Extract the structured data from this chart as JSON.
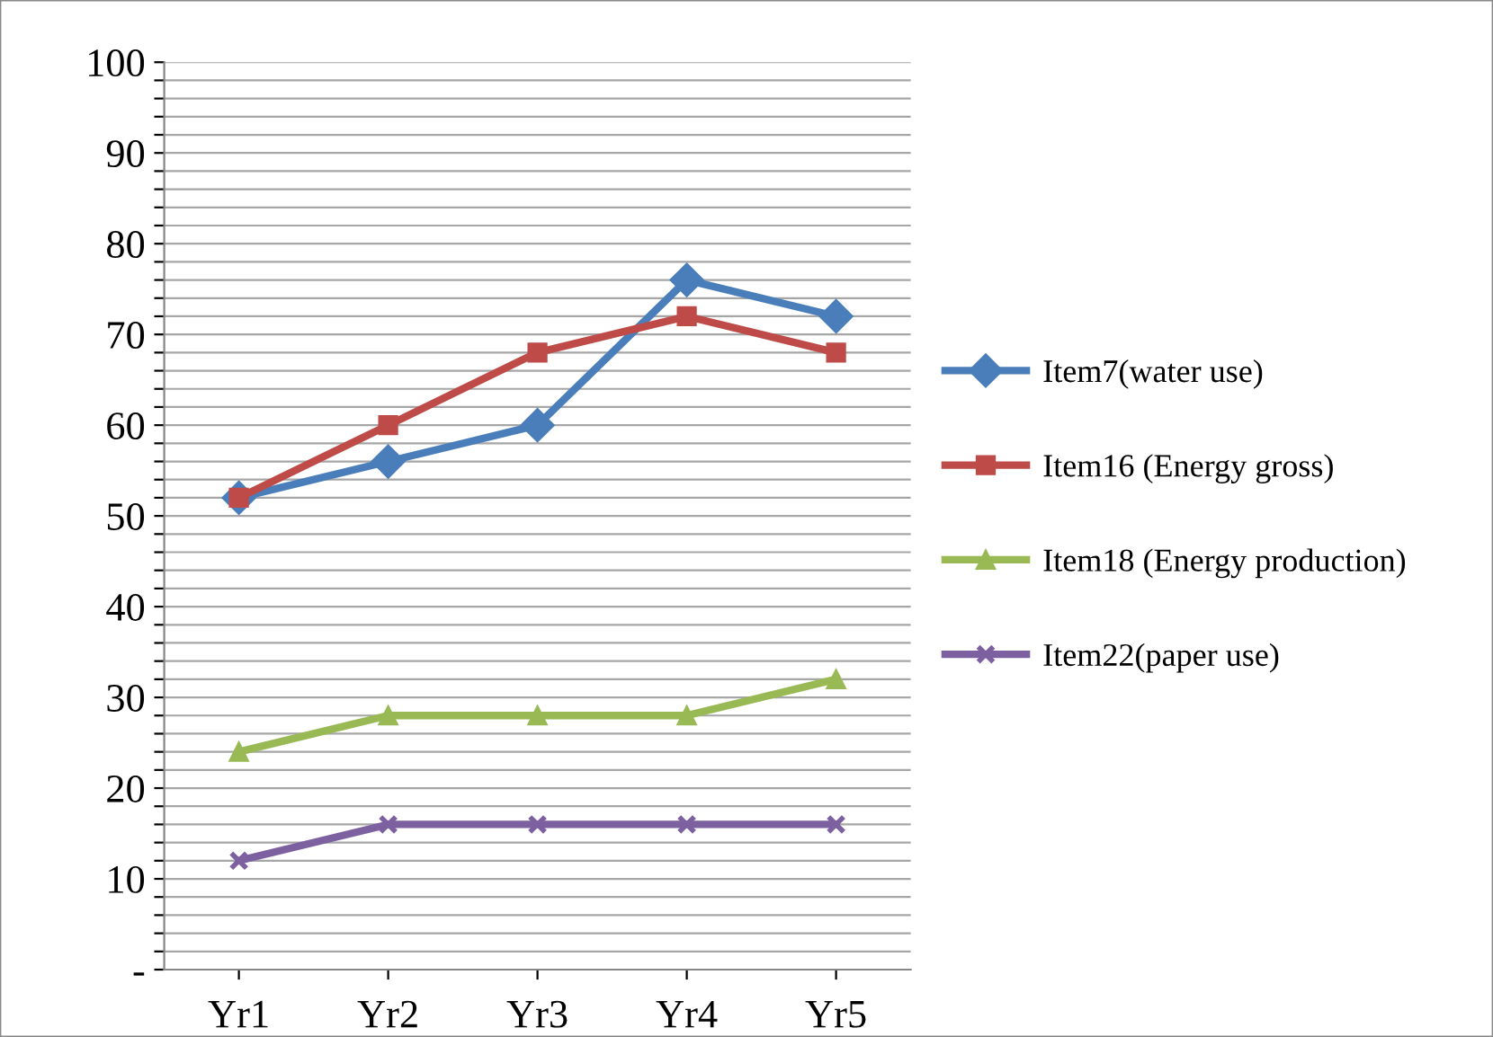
{
  "chart_data": {
    "type": "line",
    "categories": [
      "Yr1",
      "Yr2",
      "Yr3",
      "Yr4",
      "Yr5"
    ],
    "series": [
      {
        "name": "Item7(water use)",
        "color": "#4a7ebb",
        "marker": "diamond",
        "values": [
          52,
          56,
          60,
          76,
          72
        ]
      },
      {
        "name": "Item16 (Energy gross)",
        "color": "#be4b48",
        "marker": "square",
        "values": [
          52,
          60,
          68,
          72,
          68
        ]
      },
      {
        "name": "Item18 (Energy production)",
        "color": "#98b954",
        "marker": "triangle",
        "values": [
          24,
          28,
          28,
          28,
          32
        ]
      },
      {
        "name": "Item22(paper use)",
        "color": "#7d60a0",
        "marker": "cross",
        "values": [
          12,
          16,
          16,
          16,
          16
        ]
      }
    ],
    "ylim": [
      0,
      100
    ],
    "yticks": [
      {
        "value": 0,
        "label": "-"
      },
      {
        "value": 2,
        "label": null
      },
      {
        "value": 4,
        "label": null
      },
      {
        "value": 6,
        "label": null
      },
      {
        "value": 8,
        "label": null
      },
      10,
      {
        "value": 12,
        "label": null
      },
      {
        "value": 14,
        "label": null
      },
      {
        "value": 16,
        "label": null
      },
      {
        "value": 18,
        "label": null
      },
      20,
      {
        "value": 22,
        "label": null
      },
      {
        "value": 24,
        "label": null
      },
      {
        "value": 26,
        "label": null
      },
      {
        "value": 28,
        "label": null
      },
      30,
      {
        "value": 32,
        "label": null
      },
      {
        "value": 34,
        "label": null
      },
      {
        "value": 36,
        "label": null
      },
      {
        "value": 38,
        "label": null
      },
      40,
      {
        "value": 42,
        "label": null
      },
      {
        "value": 44,
        "label": null
      },
      {
        "value": 46,
        "label": null
      },
      {
        "value": 48,
        "label": null
      },
      50,
      {
        "value": 52,
        "label": null
      },
      {
        "value": 54,
        "label": null
      },
      {
        "value": 56,
        "label": null
      },
      {
        "value": 58,
        "label": null
      },
      60,
      {
        "value": 62,
        "label": null
      },
      {
        "value": 64,
        "label": null
      },
      {
        "value": 66,
        "label": null
      },
      {
        "value": 68,
        "label": null
      },
      70,
      {
        "value": 72,
        "label": null
      },
      {
        "value": 74,
        "label": null
      },
      {
        "value": 76,
        "label": null
      },
      {
        "value": 78,
        "label": null
      },
      80,
      {
        "value": 82,
        "label": null
      },
      {
        "value": 84,
        "label": null
      },
      {
        "value": 86,
        "label": null
      },
      {
        "value": 88,
        "label": null
      },
      90,
      {
        "value": 92,
        "label": null
      },
      {
        "value": 94,
        "label": null
      },
      {
        "value": 96,
        "label": null
      },
      {
        "value": 98,
        "label": null
      },
      100
    ],
    "grid": "y",
    "legend": "right",
    "line_style": "solid"
  }
}
